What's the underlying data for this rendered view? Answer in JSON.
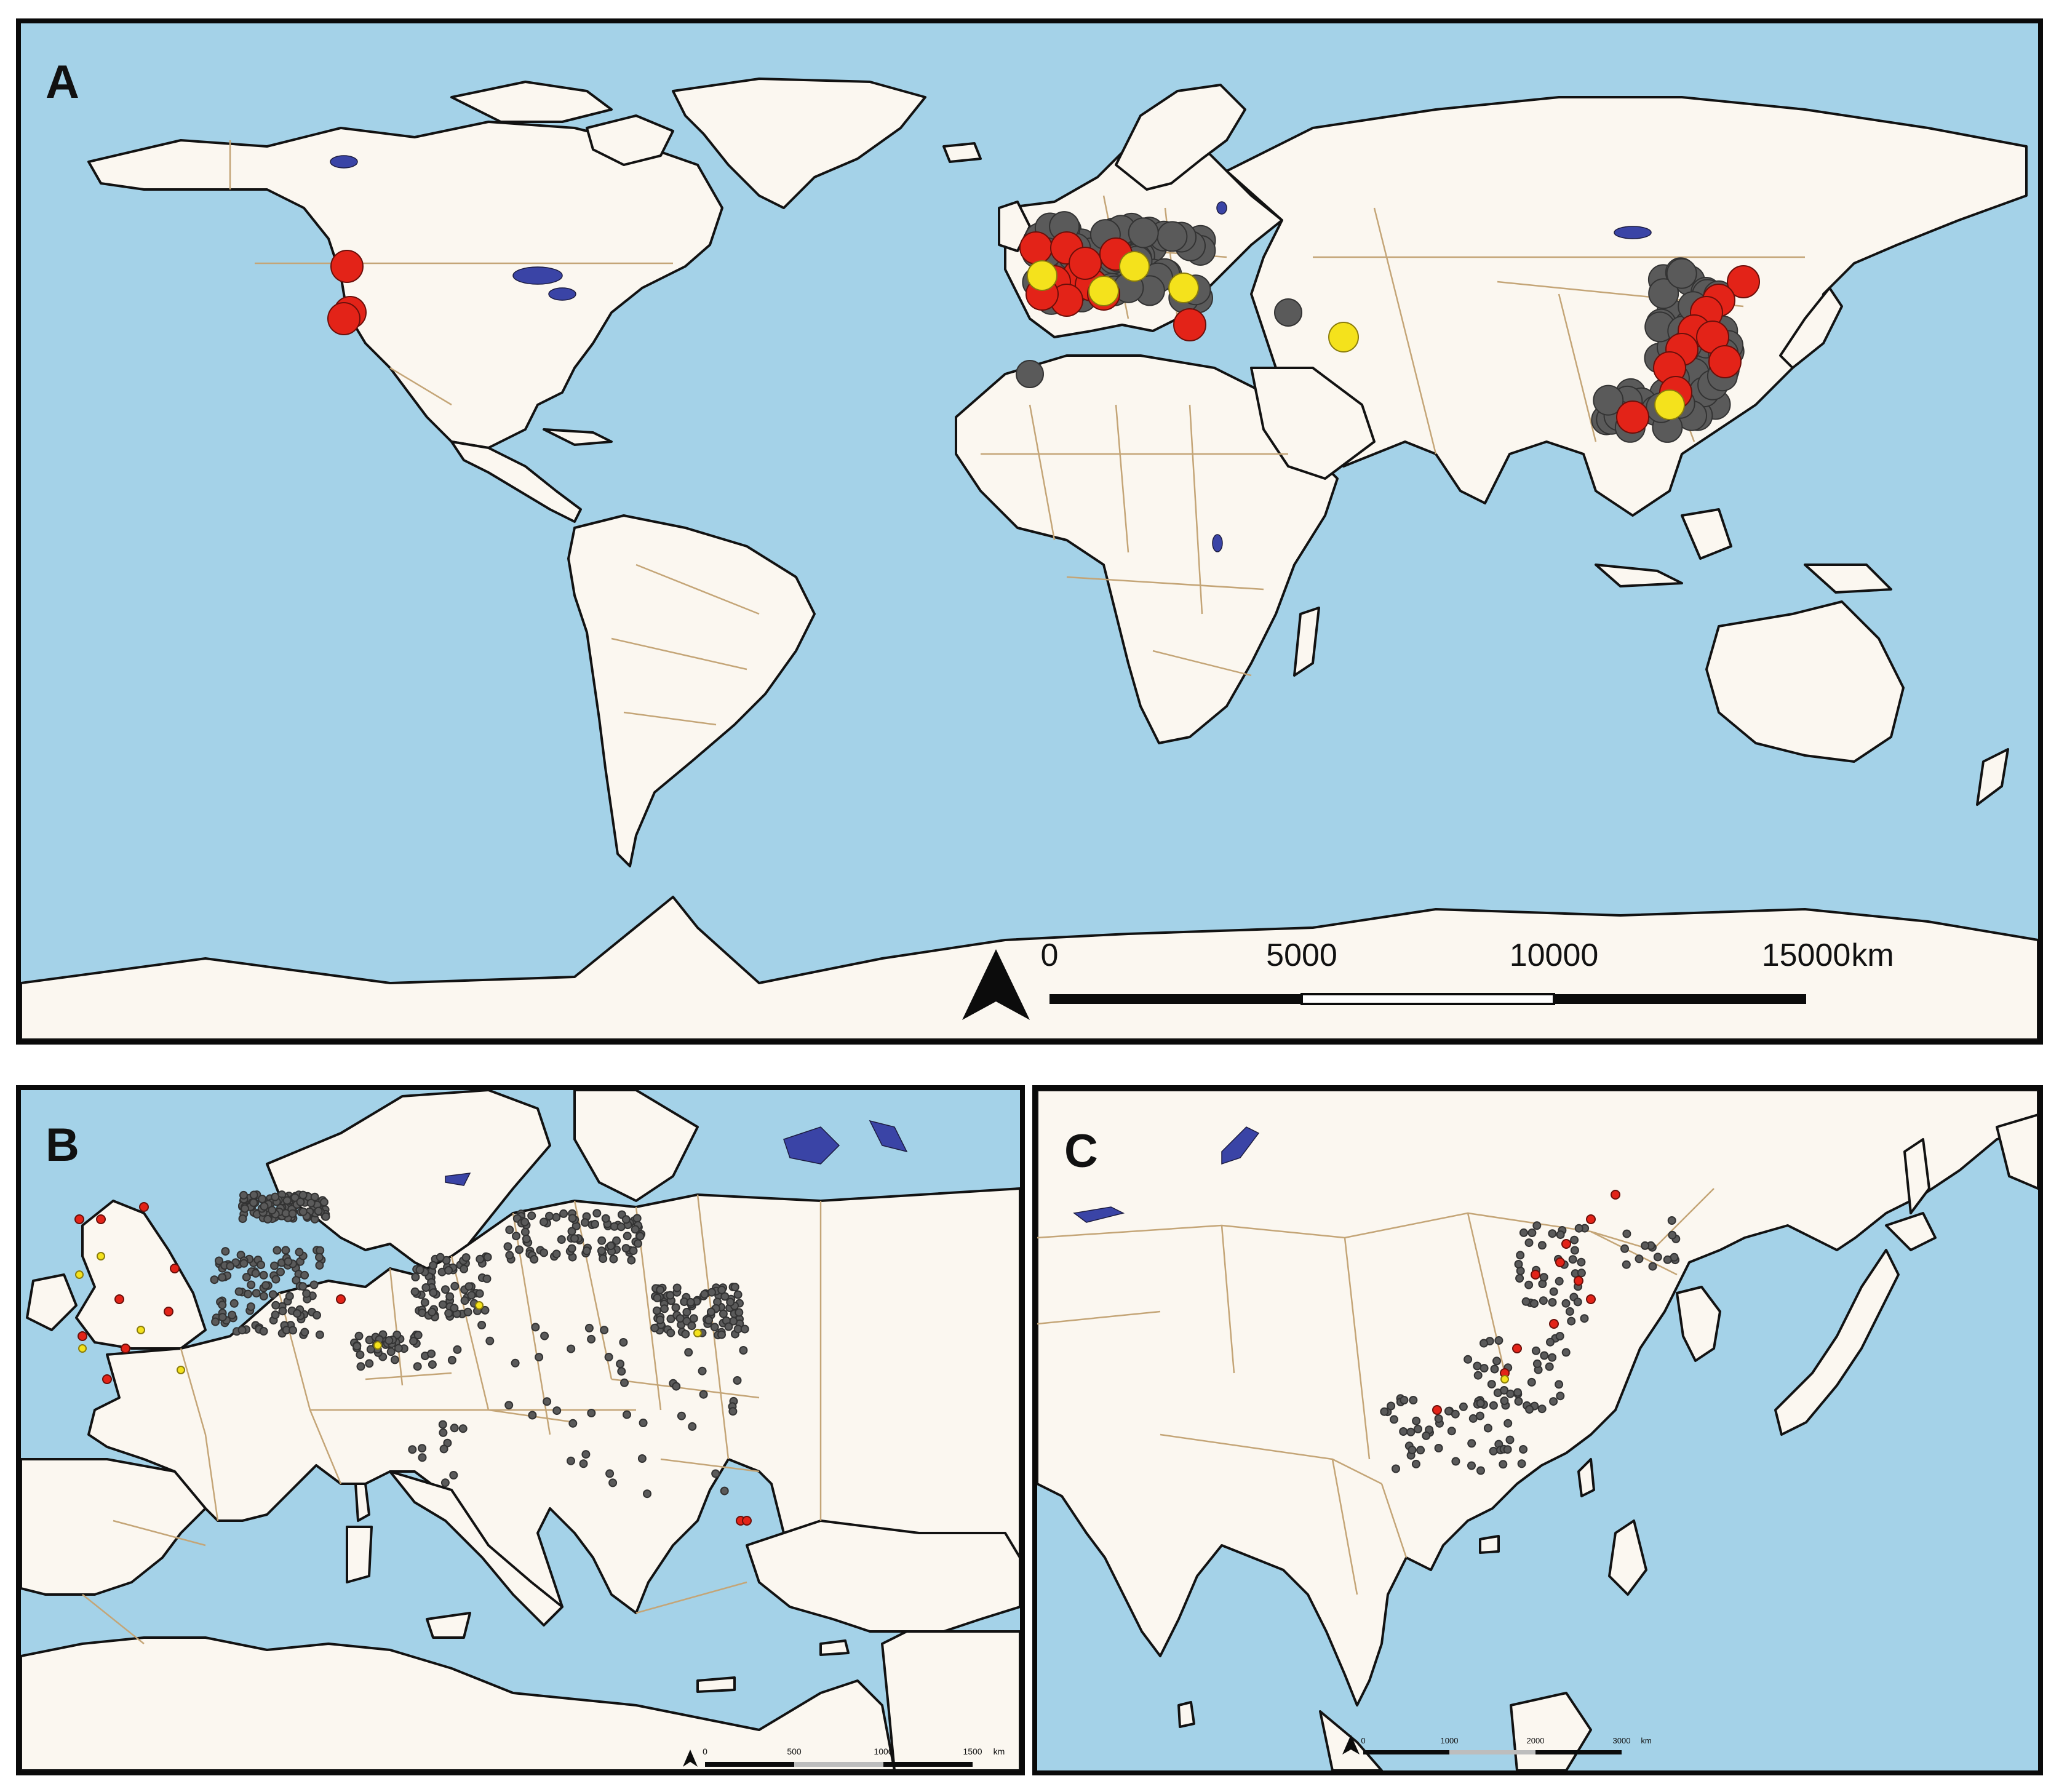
{
  "panels": [
    {
      "id": "A",
      "label": "A",
      "scale": {
        "ticks": [
          "0",
          "5000",
          "10000",
          "15000"
        ],
        "unit": "km"
      }
    },
    {
      "id": "B",
      "label": "B",
      "scale": {
        "ticks": [
          "0",
          "500",
          "1000",
          "1500"
        ],
        "unit": "km"
      }
    },
    {
      "id": "C",
      "label": "C",
      "scale": {
        "ticks": [
          "0",
          "1000",
          "2000",
          "3000"
        ],
        "unit": "km"
      }
    }
  ],
  "colors": {
    "ocean": "#a4d2e8",
    "land": "#fbf7f0",
    "country_border": "#c4a577",
    "lake": "#3a44a6",
    "point_gray": "#5a5a5a",
    "point_red": "#e32318",
    "point_yellow": "#f4e21c"
  },
  "point_categories": [
    "gray",
    "red",
    "yellow"
  ],
  "icons": {
    "north_arrow": "north-arrow-icon"
  }
}
